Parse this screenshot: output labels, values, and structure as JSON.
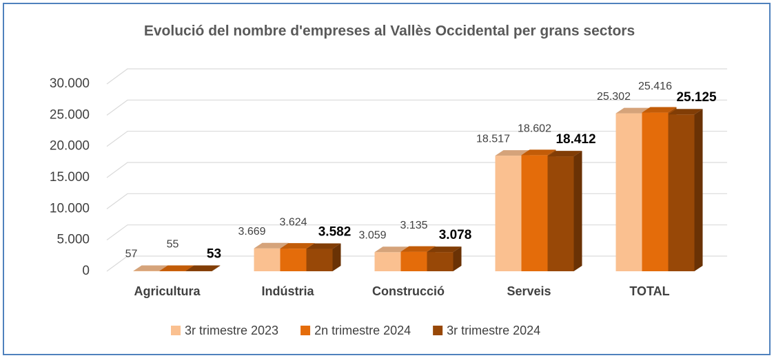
{
  "chart_data": {
    "type": "bar3d",
    "title": "Evolució del nombre d'empreses al Vallès Occidental per grans sectors",
    "categories": [
      "Agricultura",
      "Indústria",
      "Construcció",
      "Serveis",
      "TOTAL"
    ],
    "series": [
      {
        "name": "3r trimestre 2023",
        "color": "#FAC090",
        "values": [
          57,
          3669,
          3059,
          18517,
          25302
        ],
        "value_labels": [
          "57",
          "3.669",
          "3.059",
          "18.517",
          "25.302"
        ]
      },
      {
        "name": "2n trimestre 2024",
        "color": "#E46C0A",
        "values": [
          55,
          3624,
          3135,
          18602,
          25416
        ],
        "value_labels": [
          "55",
          "3.624",
          "3.135",
          "18.602",
          "25.416"
        ]
      },
      {
        "name": "3r trimestre 2024",
        "color": "#984807",
        "values": [
          53,
          3582,
          3078,
          18412,
          25125
        ],
        "value_labels": [
          "53",
          "3.582",
          "3.078",
          "18.412",
          "25.125"
        ]
      }
    ],
    "ylim": [
      0,
      30000
    ],
    "yticks": [
      0,
      {
        "value": 5000,
        "label": "5.000"
      },
      {
        "value": 10000,
        "label": "10.000"
      },
      {
        "value": 15000,
        "label": "15.000"
      },
      {
        "value": 20000,
        "label": "20.000"
      },
      {
        "value": 25000,
        "label": "25.000"
      },
      {
        "value": 30000,
        "label": "30.000"
      }
    ],
    "grid": true,
    "legend": "bottom"
  }
}
